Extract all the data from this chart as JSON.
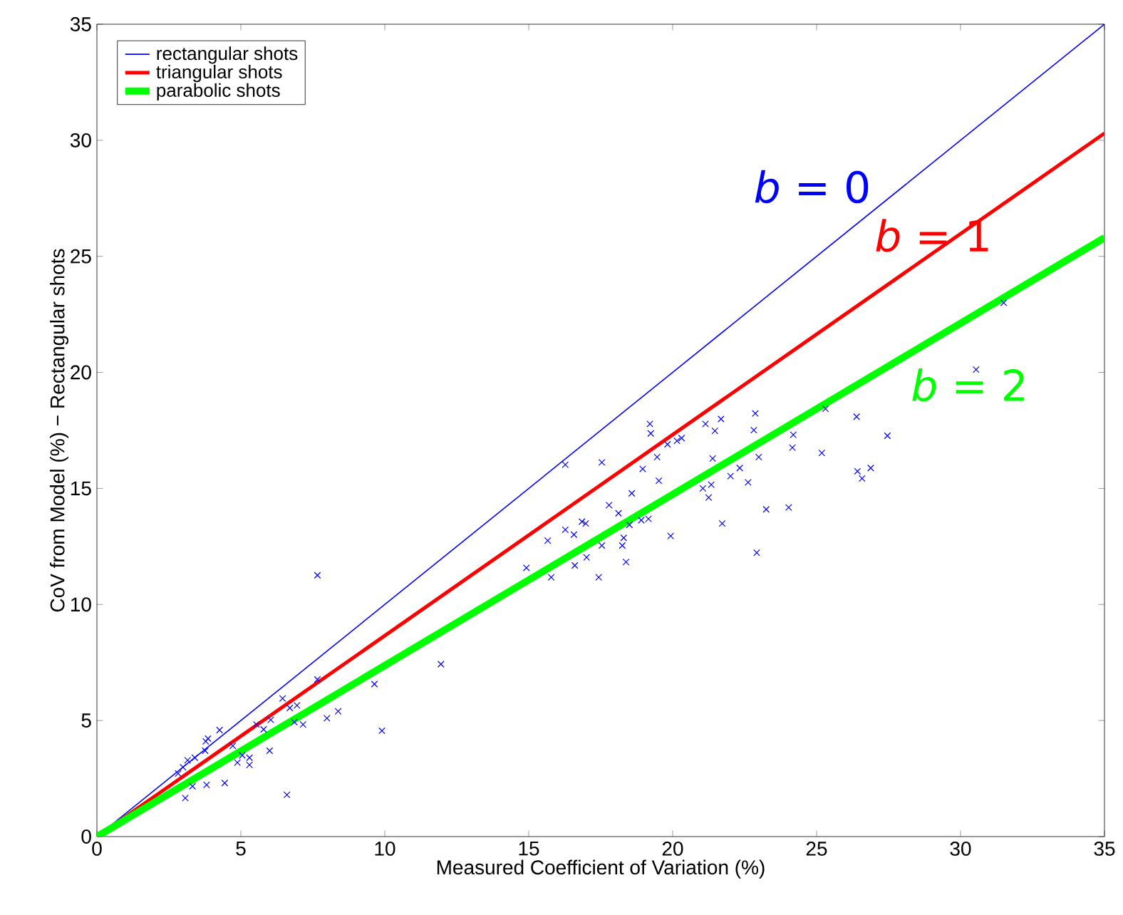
{
  "chart_data": {
    "type": "scatter",
    "xlabel": "Measured Coefficient of Variation (%)",
    "ylabel": "CoV from Model (%) − Rectangular shots",
    "xlim": [
      0,
      35
    ],
    "ylim": [
      0,
      35
    ],
    "xticks": [
      0,
      5,
      10,
      15,
      20,
      25,
      30,
      35
    ],
    "yticks": [
      0,
      5,
      10,
      15,
      20,
      25,
      30,
      35
    ],
    "grid": false,
    "legend": "top left",
    "series": [
      {
        "name": "rectangular shots",
        "type": "line",
        "color": "#0000ff",
        "x": [
          0,
          35
        ],
        "values": [
          0,
          35
        ]
      },
      {
        "name": "triangular shots",
        "type": "line",
        "color": "#ff0000",
        "x": [
          0,
          35
        ],
        "values": [
          0,
          30.3
        ]
      },
      {
        "name": "parabolic shots",
        "type": "line",
        "color": "#00ff00",
        "x": [
          0,
          35
        ],
        "values": [
          0,
          25.8
        ]
      },
      {
        "color": "#0000ff",
        "marker": "cross",
        "x": [
          7.66,
          11.95,
          9.64,
          9.9,
          6.6,
          3.07,
          3.81,
          4.44,
          3.86,
          3.78,
          4.26,
          3.76,
          2.82,
          2.99,
          3.4,
          4.88,
          5.3,
          6.0,
          6.04,
          6.45,
          6.7,
          6.95,
          7.16,
          7.66,
          7.99,
          8.38,
          3.32,
          4.72,
          5.54,
          5.79,
          3.15,
          5.05,
          5.3,
          6.86,
          16.27,
          17.54,
          19.21,
          19.24,
          21.14,
          21.68,
          21.47,
          22.87,
          22.82,
          24.19,
          24.16,
          25.18,
          25.31,
          26.39,
          27.46,
          26.42,
          26.88,
          26.58,
          24.03,
          23.25,
          22.92,
          21.72,
          22.62,
          22.99,
          22.33,
          22.01,
          21.39,
          21.05,
          21.34,
          21.25,
          20.31,
          20.15,
          19.82,
          19.46,
          18.96,
          19.52,
          18.58,
          17.79,
          18.12,
          16.85,
          16.98,
          16.27,
          16.57,
          15.66,
          14.92,
          15.78,
          16.6,
          17.01,
          17.43,
          17.54,
          18.25,
          18.38,
          18.3,
          18.5,
          18.91,
          19.16,
          19.93,
          30.54,
          31.5
        ],
        "values": [
          11.26,
          7.43,
          6.57,
          4.56,
          1.8,
          1.66,
          2.23,
          2.31,
          4.22,
          4.1,
          4.59,
          3.7,
          2.72,
          2.99,
          3.4,
          3.19,
          3.09,
          3.7,
          5.03,
          5.95,
          5.54,
          5.65,
          4.83,
          6.77,
          5.1,
          5.4,
          2.17,
          3.91,
          4.83,
          4.62,
          3.29,
          3.5,
          3.4,
          4.93,
          16.02,
          16.12,
          17.78,
          17.37,
          17.78,
          17.99,
          17.48,
          18.23,
          17.51,
          17.31,
          16.76,
          16.53,
          18.43,
          18.09,
          17.27,
          15.74,
          15.88,
          15.43,
          14.18,
          14.1,
          12.23,
          13.49,
          15.26,
          16.35,
          15.88,
          15.53,
          16.29,
          15.0,
          15.16,
          14.61,
          17.17,
          17.05,
          16.9,
          16.35,
          15.84,
          15.33,
          14.79,
          14.28,
          13.93,
          13.57,
          13.49,
          13.22,
          13.01,
          12.75,
          11.58,
          11.17,
          11.68,
          12.03,
          11.17,
          12.54,
          12.54,
          11.83,
          12.87,
          13.43,
          13.63,
          13.69,
          12.95,
          20.12,
          23.0
        ]
      }
    ],
    "annotations": [
      "*b* = 0",
      "*b* = 1",
      "*b* = 2"
    ]
  }
}
